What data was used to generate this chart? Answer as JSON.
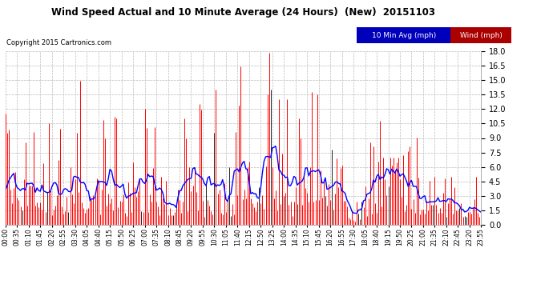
{
  "title": "Wind Speed Actual and 10 Minute Average (24 Hours)  (New)  20151103",
  "copyright": "Copyright 2015 Cartronics.com",
  "ylim": [
    0.0,
    18.0
  ],
  "yticks": [
    0.0,
    1.5,
    3.0,
    4.5,
    6.0,
    7.5,
    9.0,
    10.5,
    12.0,
    13.5,
    15.0,
    16.5,
    18.0
  ],
  "bg_color": "#ffffff",
  "plot_bg": "#ffffff",
  "grid_color": "#bbbbbb",
  "wind_color": "#ff0000",
  "avg_color": "#0000ff",
  "dark_bar_color": "#222222",
  "n_points": 288,
  "legend1_text": "10 Min Avg (mph)",
  "legend1_bg": "#0000bb",
  "legend2_text": "Wind (mph)",
  "legend2_bg": "#aa0000"
}
